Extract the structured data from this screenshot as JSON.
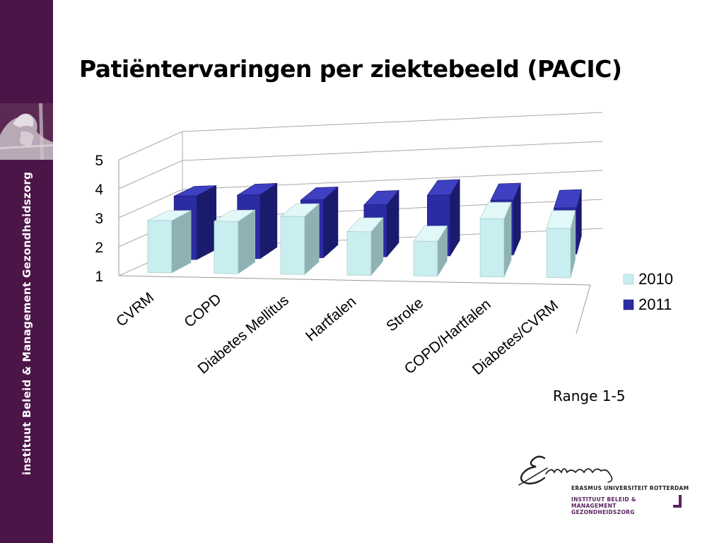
{
  "title": "Patiëntervaringen per ziektebeeld (PACIC)",
  "sidebar": {
    "text": "instituut Beleid & Management Gezondheidszorg",
    "photo_icon": "portrait-photo-icon"
  },
  "note": "Range 1-5",
  "logo": {
    "signature_icon": "erasmus-signature-logo-icon",
    "university": "ERASMUS UNIVERSITEIT ROTTERDAM",
    "institute": "INSTITUUT BELEID & MANAGEMENT GEZONDHEIDSZORG"
  },
  "colors": {
    "sidebar": "#4b1647",
    "series_2010": "#b8e6e8",
    "series_2011": "#2a2a9c"
  },
  "chart_data": {
    "type": "bar",
    "variant": "3d-clustered-column",
    "categories": [
      "CVRM",
      "COPD",
      "Diabetes Mellitus",
      "Hartfalen",
      "Stroke",
      "COPD/Hartfalen",
      "Diabetes/CVRM"
    ],
    "series": [
      {
        "name": "2010",
        "values": [
          2.8,
          2.8,
          3.0,
          2.5,
          2.2,
          3.0,
          2.7
        ]
      },
      {
        "name": "2011",
        "values": [
          3.2,
          3.2,
          3.0,
          2.8,
          3.1,
          2.9,
          2.6
        ]
      }
    ],
    "yticks": [
      "1",
      "2",
      "3",
      "4",
      "5"
    ],
    "ylim": [
      1,
      5
    ],
    "grid": true,
    "legend": "right"
  }
}
